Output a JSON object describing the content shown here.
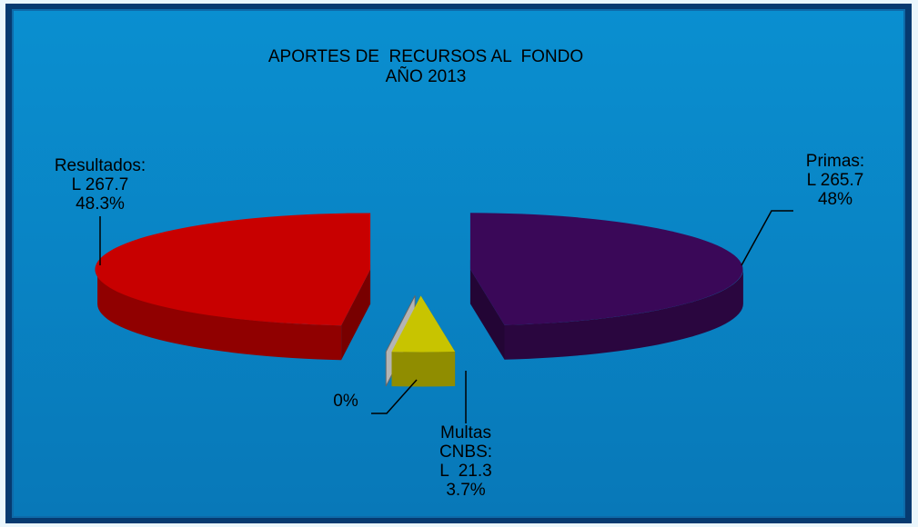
{
  "chart_data": {
    "type": "pie",
    "title": "APORTES DE  RECURSOS AL  FONDO",
    "subtitle": "AÑO 2013",
    "categories": [
      "Primas:",
      "Multas CNBS:",
      null,
      "Resultados:"
    ],
    "values": [
      48,
      3.7,
      0,
      48.3
    ],
    "value_labels": [
      "48%",
      "3.7%",
      "0%",
      "48.3%"
    ],
    "amounts": [
      265.7,
      21.3,
      null,
      267.7
    ],
    "amount_labels": [
      "L 265.7",
      "L  21.3",
      null,
      "L 267.7"
    ],
    "colors": [
      "#3a0858",
      "#c8c400",
      "#b4b4b4",
      "#c80000"
    ]
  }
}
